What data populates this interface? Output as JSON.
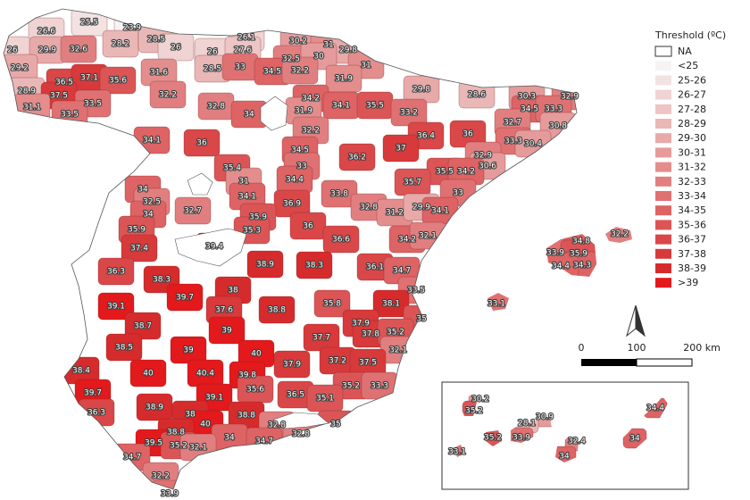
{
  "map": {
    "legend": {
      "title": "Threshold (ºC)",
      "items": [
        {
          "label": "NA",
          "color": "#ffffff"
        },
        {
          "label": "<25",
          "color": "#f7f3f3"
        },
        {
          "label": "25-26",
          "color": "#f3e2e2"
        },
        {
          "label": "26-27",
          "color": "#f0d3d3"
        },
        {
          "label": "27-28",
          "color": "#edc5c5"
        },
        {
          "label": "28-29",
          "color": "#eab7b7"
        },
        {
          "label": "29-30",
          "color": "#e8a9a9"
        },
        {
          "label": "30-31",
          "color": "#e59b9b"
        },
        {
          "label": "31-32",
          "color": "#e38d8d"
        },
        {
          "label": "32-33",
          "color": "#e17f80"
        },
        {
          "label": "33-34",
          "color": "#df7172"
        },
        {
          "label": "34-35",
          "color": "#dd6364"
        },
        {
          "label": "35-36",
          "color": "#db5556"
        },
        {
          "label": "36-37",
          "color": "#d94748"
        },
        {
          "label": "37-38",
          "color": "#d8393a"
        },
        {
          "label": "38-39",
          "color": "#d62b2c"
        },
        {
          "label": ">39",
          "color": "#e3191c"
        }
      ]
    },
    "scale_bar": {
      "labels": [
        "0",
        "100",
        "200 km"
      ]
    },
    "regions": [
      25.5,
      23.9,
      26.6,
      28.2,
      28.5,
      26,
      26,
      26.1,
      30.2,
      31,
      29.8,
      26,
      29.9,
      32.6,
      27.6,
      32.5,
      30,
      31,
      29.2,
      28.5,
      33,
      34.5,
      32.2,
      31.6,
      36.5,
      37.1,
      35.6,
      31.9,
      28.9,
      37.5,
      33.5,
      31.1,
      33.5,
      32.2,
      34.2,
      34.1,
      35.5,
      29.8,
      28.6,
      30.3,
      32.9,
      34.5,
      33.3,
      32.8,
      34,
      31.9,
      33.2,
      32.7,
      30.8,
      34.1,
      36,
      32.2,
      36.4,
      36,
      33.3,
      30.4,
      37,
      32.9,
      36.2,
      34.5,
      30.6,
      33,
      35.4,
      35.5,
      34.2,
      31,
      34.4,
      35.7,
      34,
      33.8,
      33,
      32.5,
      34.1,
      36.9,
      32.8,
      31.2,
      29.9,
      34.1,
      34,
      32.7,
      35.9,
      35.9,
      35.3,
      36,
      34.2,
      32.1,
      36.6,
      34.8,
      32.2,
      37.4,
      39.4,
      33.9,
      35.9,
      34.3,
      34.4,
      38.9,
      38.3,
      36.1,
      34.7,
      36.3,
      38.3,
      33.5,
      38,
      39.7,
      38.1,
      33.1,
      39.1,
      37.6,
      38.8,
      35.8,
      38.7,
      39,
      37.9,
      35,
      37.7,
      37.8,
      35.2,
      38.5,
      39,
      40,
      32.1,
      37.9,
      37.2,
      37.5,
      38.4,
      40,
      40.4,
      39.8,
      35.6,
      35.2,
      33.3,
      39.7,
      39.1,
      36.5,
      35.1,
      38.9,
      36.3,
      38,
      38.8,
      40,
      32.8,
      38.8,
      35,
      34,
      34.7,
      32.8,
      39.5,
      35.2,
      32.1,
      34.7,
      32.2,
      33.9
    ],
    "canary_regions": [
      30.2,
      35.2,
      30.9,
      28.1,
      34.4,
      35.2,
      33.9,
      32.4,
      34,
      33.1,
      34
    ]
  }
}
